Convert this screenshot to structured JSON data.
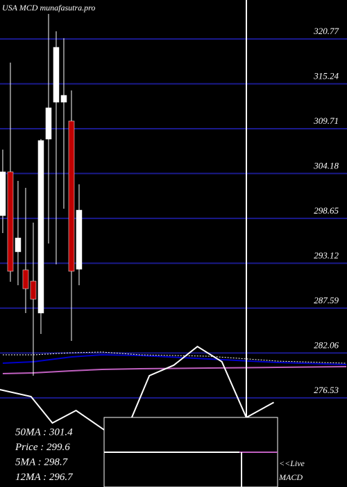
{
  "chart_data": {
    "type": "candlestick",
    "title": "USA MCD munafasutra.pro",
    "ylim": [
      265.54,
      325.57
    ],
    "xlim": [
      -0.36,
      45.09
    ],
    "yticks": [
      320.77,
      315.24,
      309.71,
      304.18,
      298.65,
      293.12,
      287.59,
      282.06,
      276.53
    ],
    "grid": true,
    "grid_color": "#1a1a8c",
    "up_color": "#ffffff",
    "down_color": "#c00000",
    "open": [
      298.99,
      304.39,
      294.53,
      292.3,
      290.92,
      286.98,
      308.42,
      312.97,
      312.97,
      310.65,
      292.38
    ],
    "high": [
      307.13,
      317.85,
      303.27,
      302.42,
      298.13,
      308.42,
      323.86,
      321.71,
      320.86,
      314.42,
      302.85
    ],
    "low": [
      296.84,
      290.84,
      290.41,
      286.98,
      279.26,
      284.41,
      295.56,
      292.98,
      299.84,
      283.55,
      290.41
    ],
    "close": [
      304.39,
      292.13,
      296.24,
      289.98,
      288.69,
      308.25,
      312.28,
      319.74,
      313.82,
      292.13,
      299.67
    ],
    "lines": [
      {
        "color": "#0000cc",
        "dash": false,
        "x": [
          0,
          4,
          9,
          13,
          18,
          27,
          36,
          45
        ],
        "values": [
          280.8,
          280.98,
          281.58,
          281.83,
          281.75,
          281.32,
          280.89,
          280.63
        ]
      },
      {
        "color": "#ffffff",
        "dash": true,
        "x": [
          0,
          4,
          9,
          13,
          18,
          27,
          36,
          45
        ],
        "values": [
          281.83,
          281.83,
          282.09,
          282.18,
          281.83,
          281.66,
          281.06,
          280.8
        ]
      },
      {
        "color": "#c060c0",
        "dash": false,
        "x": [
          0,
          4,
          9,
          13,
          18,
          27,
          36,
          45
        ],
        "values": [
          279.52,
          279.6,
          279.86,
          280.03,
          280.12,
          280.2,
          280.29,
          280.38
        ]
      },
      {
        "color": "#ffffff",
        "dash": false,
        "x": [
          -0.4,
          3.7,
          6.5,
          9.6,
          13.3,
          16.9,
          19.2,
          22.4,
          25.5,
          28.7,
          31.9,
          35.5
        ],
        "values": [
          277.55,
          276.69,
          273.43,
          274.97,
          272.57,
          274.11,
          279.26,
          280.55,
          282.86,
          280.98,
          274.11,
          275.97
        ]
      }
    ],
    "stats": [
      "50MA : 301.4",
      "Price  : 299.6",
      "5MA : 298.7",
      "12MA : 296.7"
    ],
    "live_label": "<<Live",
    "panel_label": "MACD"
  }
}
